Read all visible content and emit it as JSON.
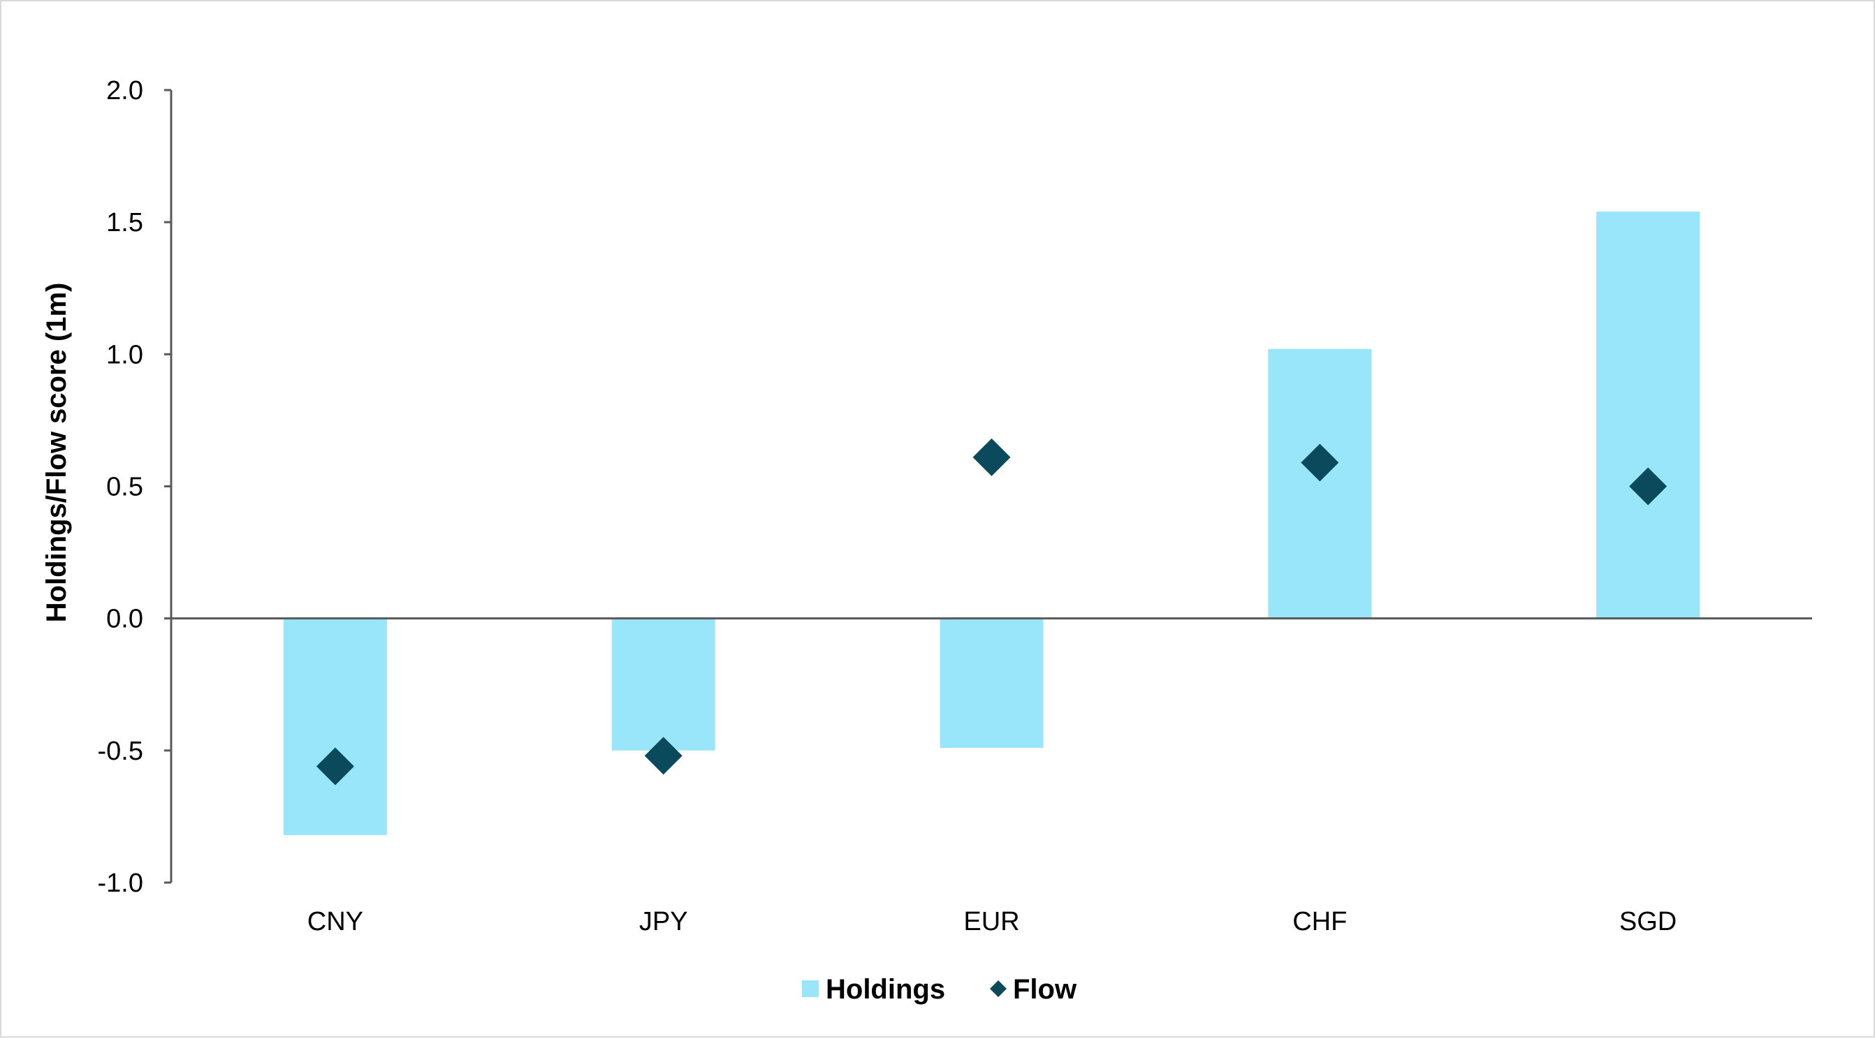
{
  "chart_data": {
    "type": "bar",
    "categories": [
      "CNY",
      "JPY",
      "EUR",
      "CHF",
      "SGD"
    ],
    "series": [
      {
        "name": "Holdings",
        "kind": "bar",
        "values": [
          -0.82,
          -0.5,
          -0.49,
          1.02,
          1.54
        ]
      },
      {
        "name": "Flow",
        "kind": "scatter-diamond",
        "values": [
          -0.56,
          -0.52,
          0.61,
          0.59,
          0.5
        ]
      }
    ],
    "ylabel": "Holdings/Flow score (1m)",
    "xlabel": "",
    "ylim": [
      -1.0,
      2.0
    ],
    "yticks": [
      "2.0",
      "1.5",
      "1.0",
      "0.5",
      "0.0",
      "-0.5",
      "-1.0"
    ],
    "ytick_values": [
      2.0,
      1.5,
      1.0,
      0.5,
      0.0,
      -0.5,
      -1.0
    ],
    "grid": false,
    "legend_position": "bottom",
    "colors": {
      "Holdings": "#99e6fa",
      "Flow": "#0b4a5c",
      "axis": "#595959"
    }
  }
}
